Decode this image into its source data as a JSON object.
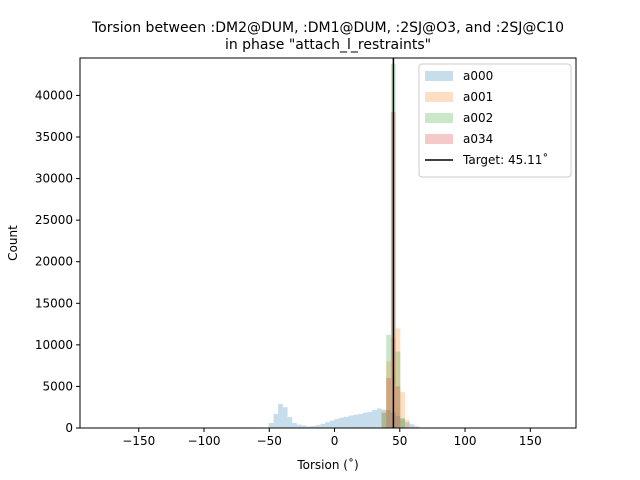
{
  "chart_data": {
    "type": "histogram",
    "title": [
      "Torsion between :DM2@DUM, :DM1@DUM, :2SJ@O3, and :2SJ@C10",
      "in phase \"attach_l_restraints\""
    ],
    "xlabel": "Torsion (˚)",
    "ylabel": "Count",
    "xlim": [
      -195,
      185
    ],
    "ylim": [
      0,
      44500
    ],
    "xticks": [
      -150,
      -100,
      -50,
      0,
      50,
      100,
      150
    ],
    "xtick_labels": [
      "−150",
      "−100",
      "−50",
      "0",
      "50",
      "100",
      "150"
    ],
    "yticks": [
      0,
      5000,
      10000,
      15000,
      20000,
      25000,
      30000,
      35000,
      40000
    ],
    "ytick_labels": [
      "0",
      "5000",
      "10000",
      "15000",
      "20000",
      "25000",
      "30000",
      "35000",
      "40000"
    ],
    "grid": false,
    "legend_position": "top-right",
    "bin_width": 3.6,
    "series": [
      {
        "name": "a000",
        "color": "#1f77b4",
        "opacity": 0.25,
        "bins": [
          [
            -50.4,
            600
          ],
          [
            -46.8,
            1700
          ],
          [
            -43.2,
            2900
          ],
          [
            -39.6,
            2500
          ],
          [
            -36.0,
            1300
          ],
          [
            -32.4,
            600
          ],
          [
            -28.8,
            400
          ],
          [
            -25.2,
            300
          ],
          [
            -21.6,
            200
          ],
          [
            -18.0,
            250
          ],
          [
            -14.4,
            350
          ],
          [
            -10.8,
            500
          ],
          [
            -7.2,
            700
          ],
          [
            -3.6,
            900
          ],
          [
            0.0,
            1100
          ],
          [
            3.6,
            1250
          ],
          [
            7.2,
            1350
          ],
          [
            10.8,
            1500
          ],
          [
            14.4,
            1600
          ],
          [
            18.0,
            1700
          ],
          [
            21.6,
            1850
          ],
          [
            25.2,
            1950
          ],
          [
            28.8,
            2150
          ],
          [
            32.4,
            2350
          ],
          [
            36.0,
            2200
          ],
          [
            39.6,
            2150
          ],
          [
            43.2,
            1850
          ],
          [
            46.8,
            1450
          ],
          [
            50.4,
            1050
          ],
          [
            54.0,
            700
          ],
          [
            57.6,
            450
          ],
          [
            61.2,
            200
          ],
          [
            64.8,
            60
          ]
        ]
      },
      {
        "name": "a001",
        "color": "#ff7f0e",
        "opacity": 0.25,
        "bins": [
          [
            36.0,
            2000
          ],
          [
            39.6,
            8000
          ],
          [
            43.2,
            10800
          ],
          [
            46.8,
            12000
          ],
          [
            50.4,
            4300
          ],
          [
            54.0,
            1000
          ]
        ]
      },
      {
        "name": "a002",
        "color": "#2ca02c",
        "opacity": 0.25,
        "bins": [
          [
            36.0,
            1800
          ],
          [
            39.6,
            11200
          ],
          [
            43.2,
            43800
          ],
          [
            46.8,
            9200
          ],
          [
            50.4,
            1200
          ]
        ]
      },
      {
        "name": "a034",
        "color": "#d62728",
        "opacity": 0.25,
        "bins": [
          [
            39.6,
            6000
          ],
          [
            43.2,
            38000
          ],
          [
            46.8,
            5000
          ]
        ]
      }
    ],
    "target_line": {
      "label": "Target: 45.11˚",
      "x": 45.11,
      "color": "#000000"
    }
  }
}
